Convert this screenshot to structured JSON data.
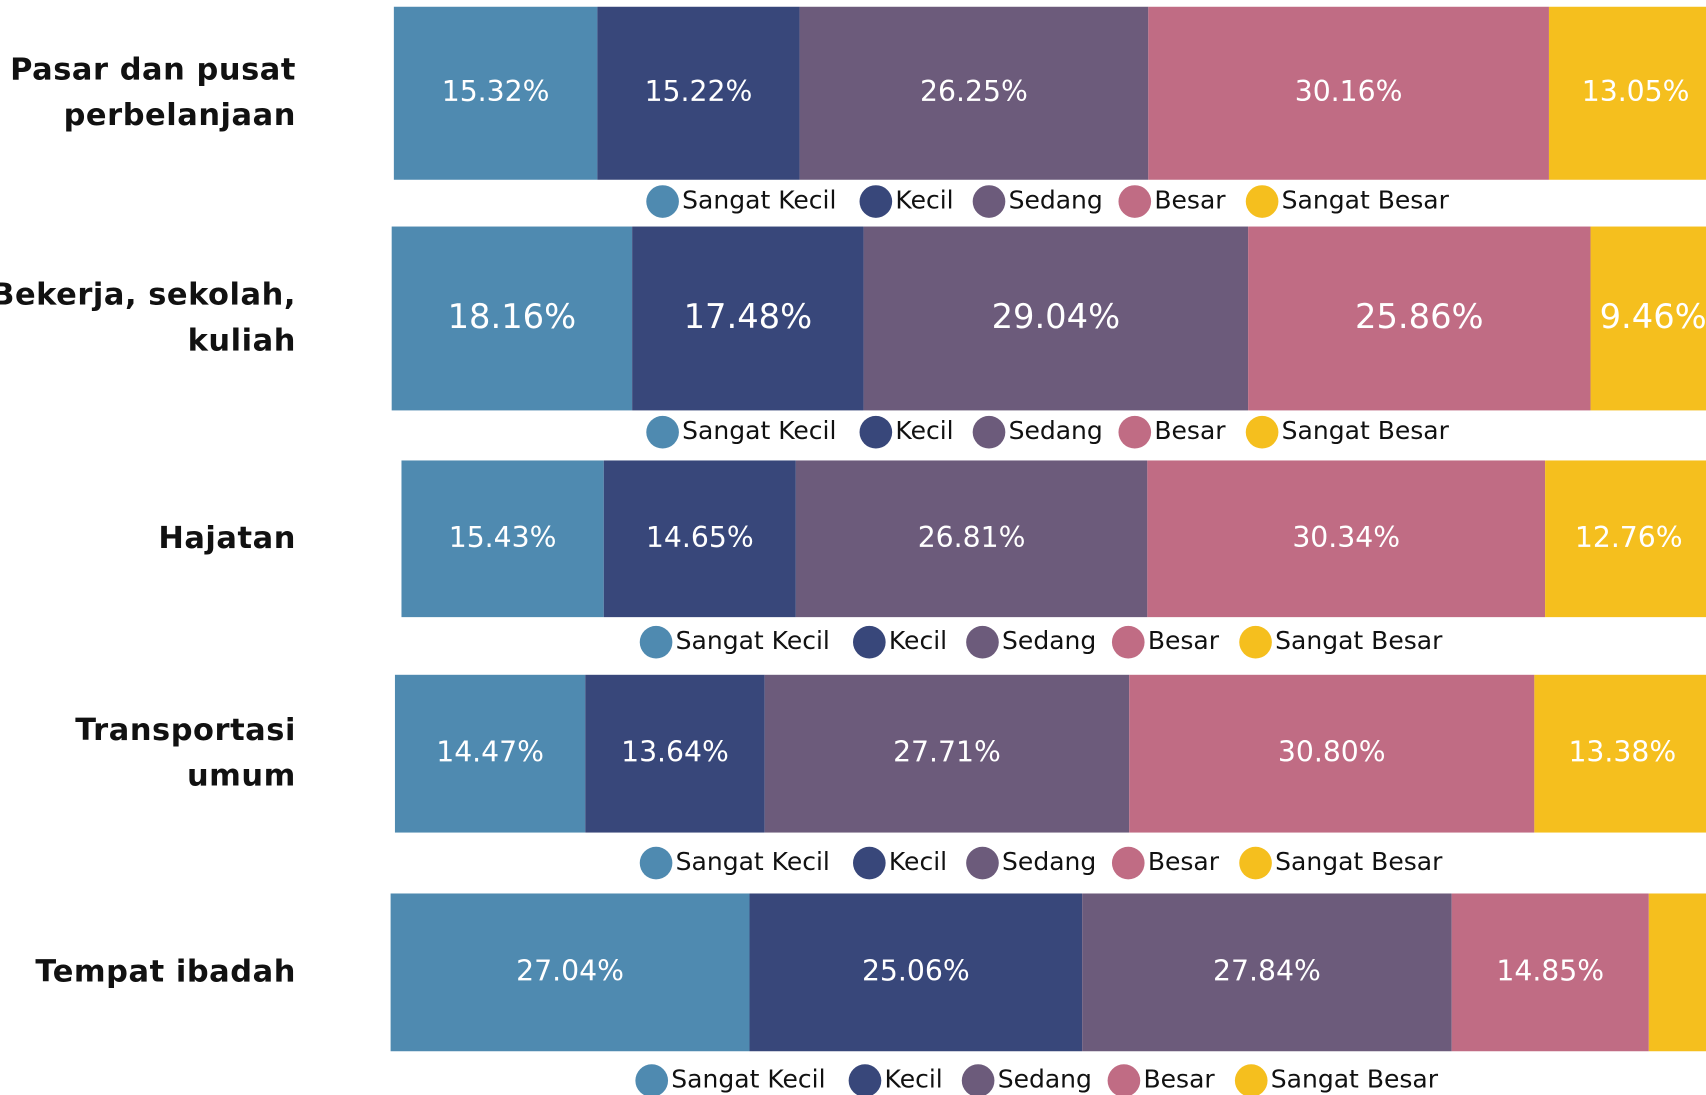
{
  "chart_data": [
    {
      "type": "bar",
      "orientation": "horizontal",
      "stacked": true,
      "categories": [
        "Pasar dan pusat\nperbelanjaan"
      ],
      "series": [
        {
          "name": "Sangat Kecil",
          "color": "#4f8ab0",
          "values": [
            15.32
          ],
          "value_labels": [
            "15.32%"
          ]
        },
        {
          "name": "Kecil",
          "color": "#38477a",
          "values": [
            15.22
          ],
          "value_labels": [
            "15.22%"
          ]
        },
        {
          "name": "Sedang",
          "color": "#6c5b7b",
          "values": [
            26.25
          ],
          "value_labels": [
            "26.25%"
          ]
        },
        {
          "name": "Besar",
          "color": "#c06c84",
          "values": [
            30.16
          ],
          "value_labels": [
            "30.16%"
          ]
        },
        {
          "name": "Sangat Besar",
          "color": "#f5bf1e",
          "values": [
            13.05
          ],
          "value_labels": [
            "13.05%"
          ]
        }
      ]
    },
    {
      "type": "bar",
      "orientation": "horizontal",
      "stacked": true,
      "categories": [
        "Bekerja, sekolah,\nkuliah"
      ],
      "series": [
        {
          "name": "Sangat Kecil",
          "color": "#4f8ab0",
          "values": [
            18.16
          ],
          "value_labels": [
            "18.16%"
          ]
        },
        {
          "name": "Kecil",
          "color": "#38477a",
          "values": [
            17.48
          ],
          "value_labels": [
            "17.48%"
          ]
        },
        {
          "name": "Sedang",
          "color": "#6c5b7b",
          "values": [
            29.04
          ],
          "value_labels": [
            "29.04%"
          ]
        },
        {
          "name": "Besar",
          "color": "#c06c84",
          "values": [
            25.86
          ],
          "value_labels": [
            "25.86%"
          ]
        },
        {
          "name": "Sangat Besar",
          "color": "#f5bf1e",
          "values": [
            9.46
          ],
          "value_labels": [
            "9.46%"
          ]
        }
      ]
    },
    {
      "type": "bar",
      "orientation": "horizontal",
      "stacked": true,
      "categories": [
        "Hajatan"
      ],
      "series": [
        {
          "name": "Sangat Kecil",
          "color": "#4f8ab0",
          "values": [
            15.43
          ],
          "value_labels": [
            "15.43%"
          ]
        },
        {
          "name": "Kecil",
          "color": "#38477a",
          "values": [
            14.65
          ],
          "value_labels": [
            "14.65%"
          ]
        },
        {
          "name": "Sedang",
          "color": "#6c5b7b",
          "values": [
            26.81
          ],
          "value_labels": [
            "26.81%"
          ]
        },
        {
          "name": "Besar",
          "color": "#c06c84",
          "values": [
            30.34
          ],
          "value_labels": [
            "30.34%"
          ]
        },
        {
          "name": "Sangat Besar",
          "color": "#f5bf1e",
          "values": [
            12.76
          ],
          "value_labels": [
            "12.76%"
          ]
        }
      ]
    },
    {
      "type": "bar",
      "orientation": "horizontal",
      "stacked": true,
      "categories": [
        "Transportasi\numum"
      ],
      "series": [
        {
          "name": "Sangat Kecil",
          "color": "#4f8ab0",
          "values": [
            14.47
          ],
          "value_labels": [
            "14.47%"
          ]
        },
        {
          "name": "Kecil",
          "color": "#38477a",
          "values": [
            13.64
          ],
          "value_labels": [
            "13.64%"
          ]
        },
        {
          "name": "Sedang",
          "color": "#6c5b7b",
          "values": [
            27.71
          ],
          "value_labels": [
            "27.71%"
          ]
        },
        {
          "name": "Besar",
          "color": "#c06c84",
          "values": [
            30.8
          ],
          "value_labels": [
            "30.80%"
          ]
        },
        {
          "name": "Sangat Besar",
          "color": "#f5bf1e",
          "values": [
            13.38
          ],
          "value_labels": [
            "13.38%"
          ]
        }
      ]
    },
    {
      "type": "bar",
      "orientation": "horizontal",
      "stacked": true,
      "categories": [
        "Tempat ibadah"
      ],
      "series": [
        {
          "name": "Sangat Kecil",
          "color": "#4f8ab0",
          "values": [
            27.04
          ],
          "value_labels": [
            "27.04%"
          ]
        },
        {
          "name": "Kecil",
          "color": "#38477a",
          "values": [
            25.06
          ],
          "value_labels": [
            "25.06%"
          ]
        },
        {
          "name": "Sedang",
          "color": "#6c5b7b",
          "values": [
            27.84
          ],
          "value_labels": [
            "27.84%"
          ]
        },
        {
          "name": "Besar",
          "color": "#c06c84",
          "values": [
            14.85
          ],
          "value_labels": [
            "14.85%"
          ]
        },
        {
          "name": "Sangat Besar",
          "color": "#f5bf1e",
          "values": [
            5.21
          ],
          "value_labels": [
            null
          ]
        }
      ]
    }
  ]
}
